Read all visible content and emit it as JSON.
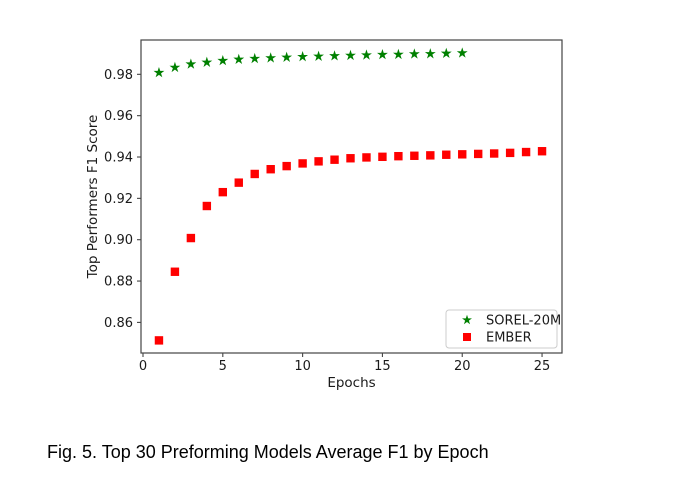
{
  "caption": {
    "text": "Fig. 5. Top 30 Preforming Models Average F1 by Epoch"
  },
  "chart_data": {
    "type": "scatter",
    "title": "",
    "xlabel": "Epochs",
    "ylabel": "Top Performers F1 Score",
    "xlim": [
      -0.125,
      26.25
    ],
    "ylim": [
      0.8452,
      0.9966
    ],
    "x_ticks": [
      0,
      5,
      10,
      15,
      20,
      25
    ],
    "y_ticks": [
      0.86,
      0.88,
      0.9,
      0.92,
      0.94,
      0.96,
      0.98
    ],
    "grid": false,
    "legend_position": "lower-right",
    "colors": {
      "sorel": "#008000",
      "ember": "#ff0000",
      "spine": "#444444",
      "text": "#1a1a1a",
      "legend_border": "#cccccc"
    },
    "series": [
      {
        "name": "SOREL-20M",
        "marker": "star",
        "color": "#008000",
        "x": [
          1,
          2,
          3,
          4,
          5,
          6,
          7,
          8,
          9,
          10,
          11,
          12,
          13,
          14,
          15,
          16,
          17,
          18,
          19,
          20
        ],
        "y": [
          0.9808,
          0.9833,
          0.9849,
          0.9858,
          0.9866,
          0.9872,
          0.9876,
          0.9879,
          0.9882,
          0.9885,
          0.9887,
          0.9889,
          0.9891,
          0.9893,
          0.9895,
          0.9896,
          0.9898,
          0.9899,
          0.9901,
          0.9903
        ]
      },
      {
        "name": "EMBER",
        "marker": "square",
        "color": "#ff0000",
        "x": [
          1,
          2,
          3,
          4,
          5,
          6,
          7,
          8,
          9,
          10,
          11,
          12,
          13,
          14,
          15,
          16,
          17,
          18,
          19,
          20,
          21,
          22,
          23,
          24,
          25
        ],
        "y": [
          0.8513,
          0.8845,
          0.9008,
          0.9163,
          0.923,
          0.9276,
          0.9318,
          0.9341,
          0.9356,
          0.9369,
          0.9379,
          0.9387,
          0.9394,
          0.9398,
          0.9401,
          0.9404,
          0.9406,
          0.9408,
          0.9411,
          0.9413,
          0.9415,
          0.9417,
          0.942,
          0.9424,
          0.9428
        ]
      }
    ]
  }
}
